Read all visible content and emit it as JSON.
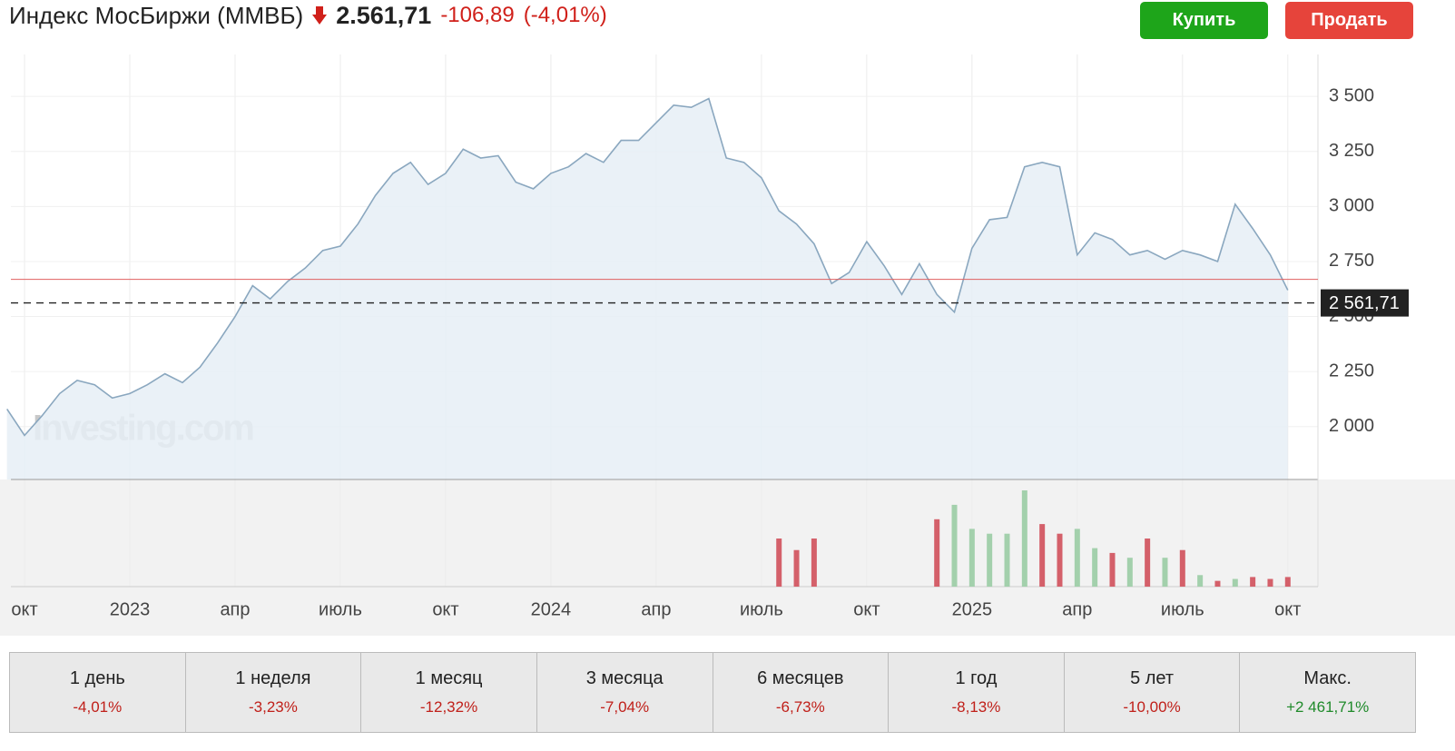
{
  "header": {
    "title": "Индекс МосБиржи (ММВБ)",
    "price": "2.561,71",
    "change": "-106,89",
    "change_pct": "(-4,01%)"
  },
  "buttons": {
    "buy": "Купить",
    "sell": "Продать"
  },
  "chart_data": {
    "type": "line",
    "x": [
      null,
      "окт",
      null,
      null,
      null,
      null,
      null,
      "2023",
      null,
      null,
      null,
      null,
      null,
      "апр",
      null,
      null,
      null,
      null,
      null,
      "июль",
      null,
      null,
      null,
      null,
      null,
      "окт",
      null,
      null,
      null,
      null,
      null,
      "2024",
      null,
      null,
      null,
      null,
      null,
      "апр",
      null,
      null,
      null,
      null,
      null,
      "июль",
      null,
      null,
      null,
      null,
      null,
      "окт",
      null,
      null,
      null,
      null,
      null,
      "2025",
      null,
      null,
      null,
      null,
      null,
      "апр",
      null,
      null,
      null,
      null,
      null,
      "июль",
      null,
      null,
      null,
      null,
      null,
      "окт"
    ],
    "series": [
      {
        "color": "#8aa7bf",
        "values": [
          2080,
          1960,
          2050,
          2150,
          2210,
          2190,
          2130,
          2150,
          2190,
          2240,
          2200,
          2270,
          2380,
          2500,
          2640,
          2580,
          2660,
          2720,
          2800,
          2820,
          2920,
          3050,
          3150,
          3200,
          3100,
          3150,
          3260,
          3220,
          3230,
          3110,
          3080,
          3150,
          3180,
          3240,
          3200,
          3300,
          3300,
          3380,
          3460,
          3450,
          3490,
          3220,
          3200,
          3130,
          2980,
          2920,
          2830,
          2650,
          2700,
          2840,
          2730,
          2600,
          2740,
          2600,
          2520,
          2810,
          2940,
          2950,
          3180,
          3200,
          3180,
          2780,
          2880,
          2850,
          2780,
          2800,
          2760,
          2800,
          2780,
          2750,
          3010,
          2900,
          2780,
          2620
        ]
      }
    ],
    "ylim": [
      1760,
      3690
    ],
    "yticks": [
      {
        "value": 2000,
        "label": "2 000"
      },
      {
        "value": 2250,
        "label": "2 250"
      },
      {
        "value": 2500,
        "label": "2 500"
      },
      {
        "value": 2750,
        "label": "2 750"
      },
      {
        "value": 3000,
        "label": "3 000"
      },
      {
        "value": 3250,
        "label": "3 250"
      },
      {
        "value": 3500,
        "label": "3 500"
      }
    ],
    "grid": true,
    "previous_close": 2668.6,
    "last_value": {
      "value": 2561.71,
      "label": "2 561,71"
    },
    "watermark": "Investing.com",
    "volume": {
      "values": [
        null,
        null,
        null,
        null,
        null,
        null,
        null,
        null,
        null,
        null,
        null,
        null,
        null,
        null,
        null,
        null,
        null,
        null,
        null,
        null,
        null,
        null,
        null,
        null,
        null,
        null,
        null,
        null,
        null,
        null,
        null,
        null,
        null,
        null,
        null,
        null,
        null,
        null,
        null,
        null,
        null,
        null,
        null,
        null,
        50,
        38,
        50,
        null,
        null,
        null,
        null,
        null,
        null,
        70,
        85,
        60,
        55,
        55,
        100,
        65,
        55,
        60,
        40,
        35,
        30,
        50,
        30,
        38,
        12,
        6,
        8,
        10,
        8,
        10
      ],
      "colors": [
        null,
        null,
        null,
        null,
        null,
        null,
        null,
        null,
        null,
        null,
        null,
        null,
        null,
        null,
        null,
        null,
        null,
        null,
        null,
        null,
        null,
        null,
        null,
        null,
        null,
        null,
        null,
        null,
        null,
        null,
        null,
        null,
        null,
        null,
        null,
        null,
        null,
        null,
        null,
        null,
        null,
        null,
        null,
        null,
        "#d4606a",
        "#d4606a",
        "#d4606a",
        null,
        null,
        null,
        null,
        null,
        null,
        "#d4606a",
        "#a3d0ac",
        "#a3d0ac",
        "#a3d0ac",
        "#a3d0ac",
        "#a3d0ac",
        "#d4606a",
        "#d4606a",
        "#a3d0ac",
        "#a3d0ac",
        "#d4606a",
        "#a3d0ac",
        "#d4606a",
        "#a3d0ac",
        "#d4606a",
        "#a3d0ac",
        "#d4606a",
        "#a3d0ac",
        "#d4606a",
        "#d4606a",
        "#d4606a"
      ]
    }
  },
  "performance": [
    {
      "period": "1 день",
      "change": "-4,01%"
    },
    {
      "period": "1 неделя",
      "change": "-3,23%"
    },
    {
      "period": "1 месяц",
      "change": "-12,32%"
    },
    {
      "period": "3 месяца",
      "change": "-7,04%"
    },
    {
      "period": "6 месяцев",
      "change": "-6,73%"
    },
    {
      "period": "1 год",
      "change": "-8,13%"
    },
    {
      "period": "5 лет",
      "change": "-10,00%"
    },
    {
      "period": "Макс.",
      "change": "+2 461,71%"
    }
  ]
}
